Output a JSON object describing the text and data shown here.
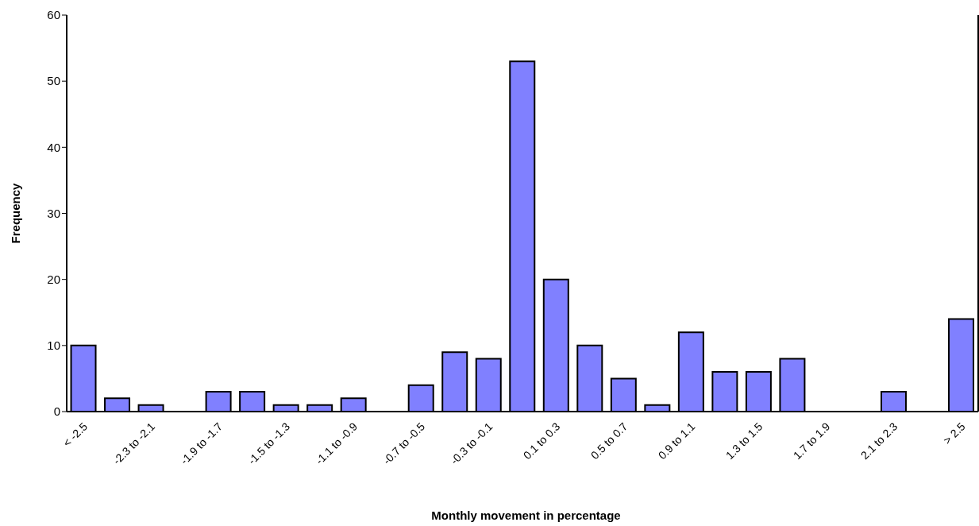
{
  "chart_data": {
    "type": "bar",
    "xlabel": "Monthly movement in percentage",
    "ylabel": "Frequency",
    "categories": [
      "< -2.5",
      null,
      "-2.3 to -2.1",
      null,
      "-1.9 to -1.7",
      null,
      "-1.5 to -1.3",
      null,
      "-1.1 to -0.9",
      null,
      "-0.7 to -0.5",
      null,
      "-0.3 to -0.1",
      null,
      "0.1 to 0.3",
      null,
      "0.5 to 0.7",
      null,
      "0.9 to 1.1",
      null,
      "1.3 to 1.5",
      null,
      "1.7 to 1.9",
      null,
      "2.1 to 2.3",
      null,
      "> 2.5"
    ],
    "values": [
      10,
      2,
      1,
      0,
      3,
      3,
      1,
      1,
      2,
      0,
      4,
      9,
      8,
      53,
      20,
      10,
      5,
      1,
      12,
      6,
      6,
      8,
      0,
      0,
      3,
      0,
      14
    ],
    "color": "#8080ff",
    "ylim": [
      0,
      60
    ],
    "yticks": [
      0,
      10,
      20,
      30,
      40,
      50,
      60
    ],
    "grid": false,
    "legend": false
  }
}
